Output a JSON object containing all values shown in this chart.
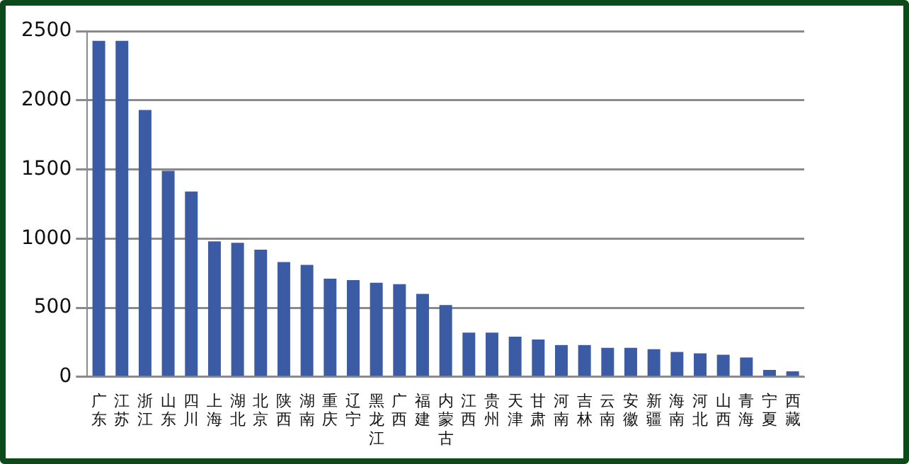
{
  "chart_data": {
    "type": "bar",
    "categories": [
      "广东",
      "江苏",
      "浙江",
      "山东",
      "四川",
      "上海",
      "湖北",
      "北京",
      "陕西",
      "湖南",
      "重庆",
      "辽宁",
      "黑龙江",
      "广西",
      "福建",
      "内蒙古",
      "江西",
      "贵州",
      "天津",
      "甘肃",
      "河南",
      "吉林",
      "云南",
      "安徽",
      "新疆",
      "海南",
      "河北",
      "山西",
      "青海",
      "宁夏",
      "西藏"
    ],
    "values": [
      2430,
      2430,
      1930,
      1490,
      1340,
      980,
      970,
      920,
      830,
      810,
      710,
      700,
      680,
      670,
      600,
      520,
      320,
      320,
      290,
      270,
      230,
      230,
      210,
      210,
      200,
      180,
      170,
      160,
      140,
      50,
      40
    ],
    "color": "#3b5ba5",
    "ylim": [
      0,
      2500
    ],
    "yticks": [
      0,
      500,
      1000,
      1500,
      2000,
      2500
    ],
    "grid": "y",
    "legend": false
  }
}
